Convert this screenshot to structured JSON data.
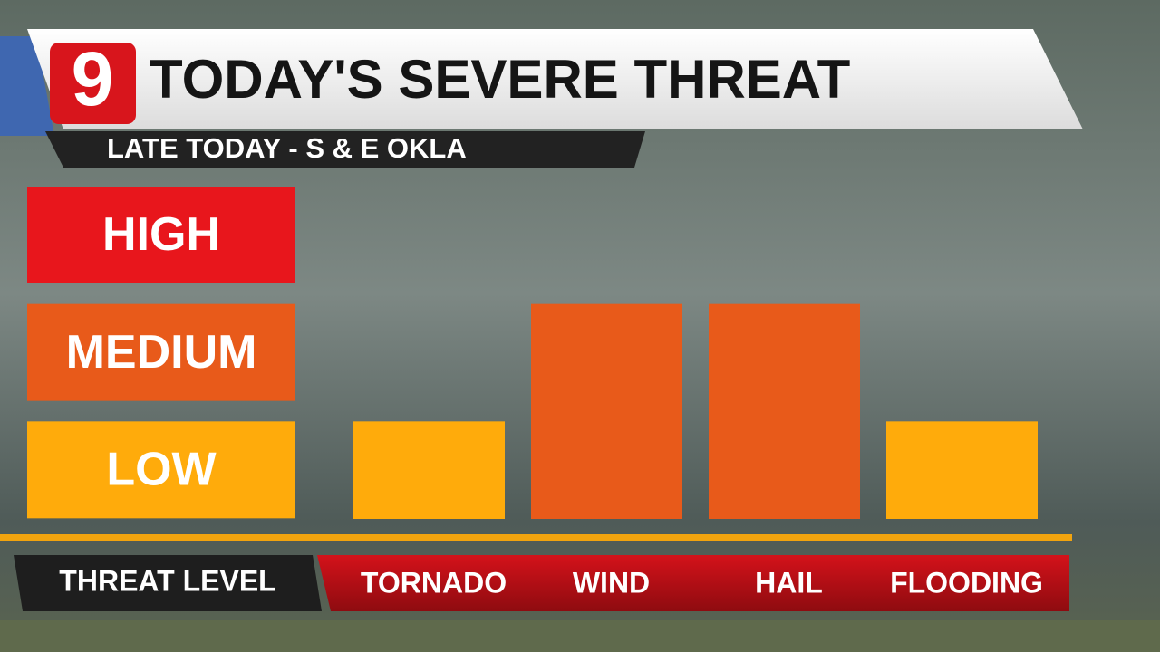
{
  "chart_data": {
    "type": "bar",
    "logo": "9",
    "title": "TODAY'S SEVERE THREAT",
    "subtitle": "LATE TODAY - S & E OKLA",
    "x_label": "THREAT LEVEL",
    "categories": [
      "TORNADO",
      "WIND",
      "HAIL",
      "FLOODING"
    ],
    "values": [
      1,
      2,
      2,
      1
    ],
    "colors": [
      "#ffab0b",
      "#e85a1a",
      "#e85a1a",
      "#ffab0b"
    ],
    "ylim": [
      0,
      3
    ],
    "yticks": [
      {
        "value": 1,
        "label": "LOW"
      },
      {
        "value": 2,
        "label": "MEDIUM"
      },
      {
        "value": 3,
        "label": "HIGH"
      }
    ],
    "ytick_colors": [
      "#ffab0b",
      "#e85a1a",
      "#e8161c"
    ]
  }
}
